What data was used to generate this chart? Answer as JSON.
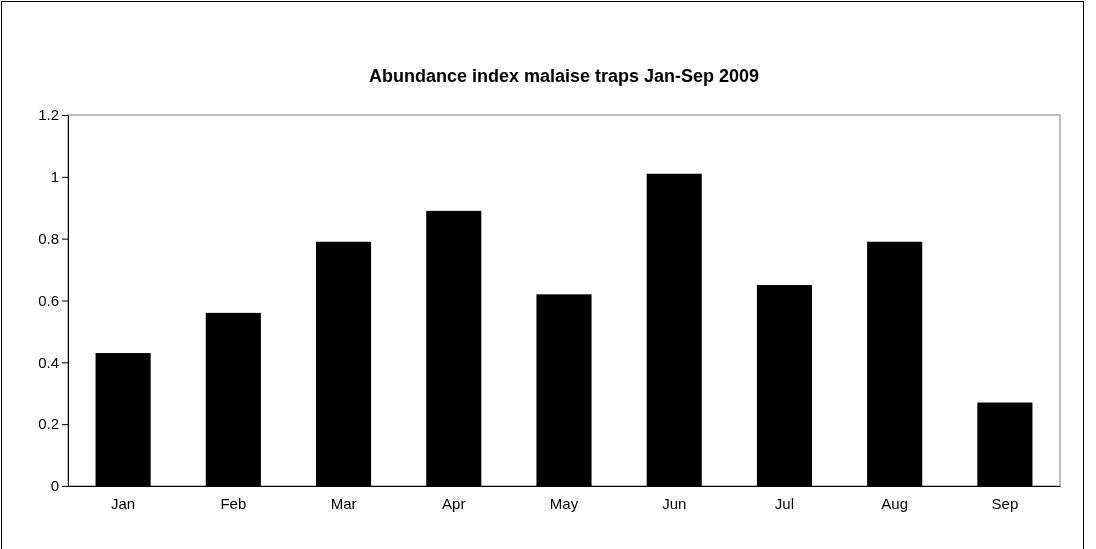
{
  "chart_data": {
    "type": "bar",
    "title": "Abundance index malaise traps Jan-Sep 2009",
    "categories": [
      "Jan",
      "Feb",
      "Mar",
      "Apr",
      "May",
      "Jun",
      "Jul",
      "Aug",
      "Sep"
    ],
    "values": [
      0.43,
      0.56,
      0.79,
      0.89,
      0.62,
      1.01,
      0.65,
      0.79,
      0.27
    ],
    "color": "#000000",
    "ylim": [
      0,
      1.2
    ],
    "yticks": [
      0,
      0.2,
      0.4,
      0.6,
      0.8,
      1,
      1.2
    ],
    "grid": false
  }
}
